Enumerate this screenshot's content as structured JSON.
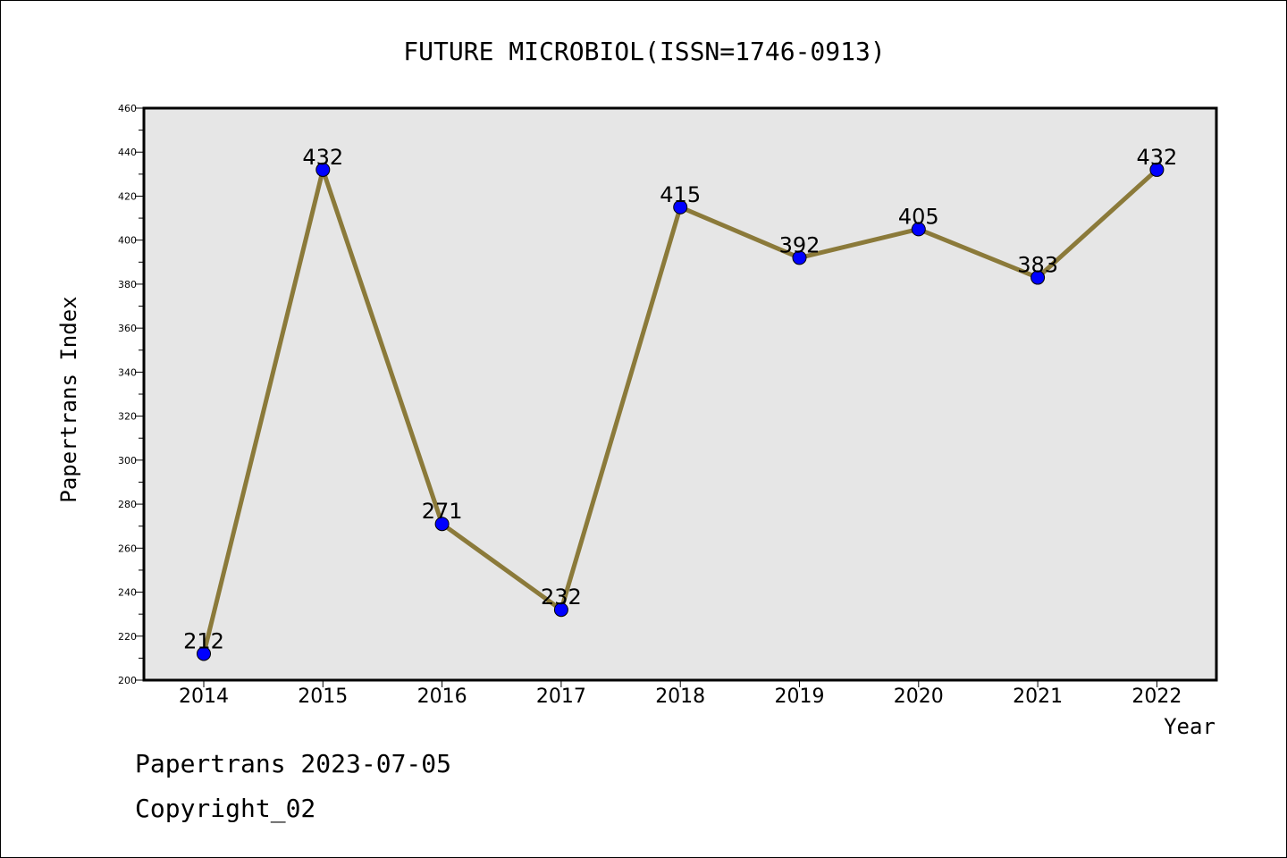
{
  "chart_data": {
    "type": "line",
    "title": "FUTURE MICROBIOL(ISSN=1746-0913)",
    "xlabel": "Year",
    "ylabel": "Papertrans Index",
    "categories": [
      "2014",
      "2015",
      "2016",
      "2017",
      "2018",
      "2019",
      "2020",
      "2021",
      "2022"
    ],
    "series": [
      {
        "values": [
          212,
          432,
          271,
          232,
          415,
          392,
          405,
          383,
          432
        ]
      }
    ],
    "ylim": [
      200,
      460
    ],
    "yticks": [
      200,
      220,
      240,
      260,
      280,
      300,
      320,
      340,
      360,
      380,
      400,
      420,
      440,
      460
    ],
    "grid": false,
    "legend": "none",
    "colors": {
      "plot_background": "#e6e6e6",
      "line": "#8b7a3a",
      "marker": "#0000ff",
      "axis": "#000000"
    }
  },
  "footer": {
    "line1": "Papertrans 2023-07-05",
    "line2": "Copyright_02"
  }
}
